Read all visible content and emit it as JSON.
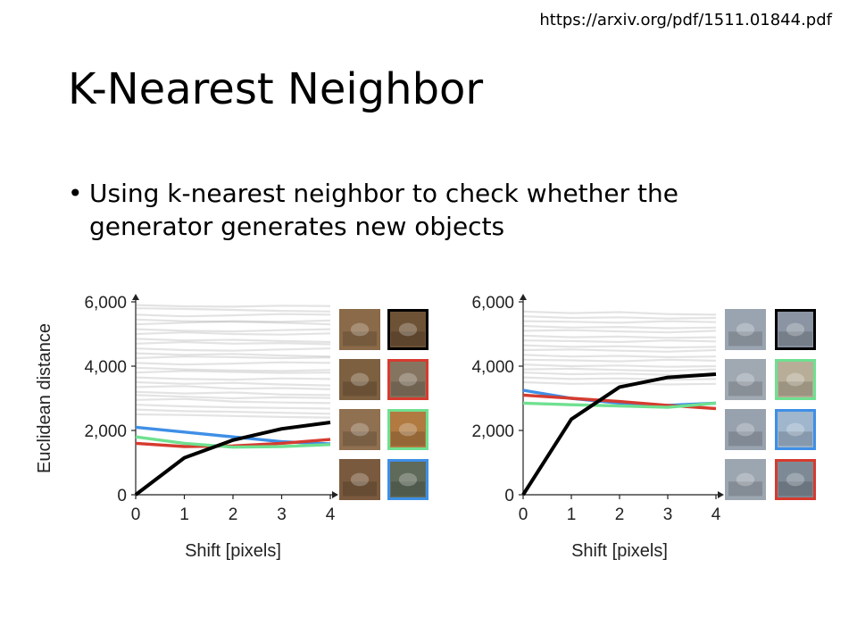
{
  "source_url": "https://arxiv.org/pdf/1511.01844.pdf",
  "title": "K-Nearest Neighbor",
  "bullet": "Using k-nearest neighbor to check whether the generator generates new objects",
  "bullet_symbol": "•",
  "colors": {
    "black": "#000000",
    "blue": "#3f8fe6",
    "red": "#d63b2f",
    "green": "#6fe090",
    "gray": "#9a9a9a"
  },
  "chart_data": [
    {
      "type": "line",
      "title": "",
      "xlabel": "Shift [pixels]",
      "ylabel": "Euclidean distance",
      "x": [
        0,
        1,
        2,
        3,
        4
      ],
      "xticks": [
        "0",
        "1",
        "2",
        "3",
        "4"
      ],
      "yticks": [
        {
          "v": 0,
          "label": "0"
        },
        {
          "v": 2000,
          "label": "2,000"
        },
        {
          "v": 4000,
          "label": "4,000"
        },
        {
          "v": 6000,
          "label": "6,000"
        }
      ],
      "xlim": [
        0,
        4
      ],
      "ylim": [
        0,
        6000
      ],
      "grid": false,
      "series": [
        {
          "color": "black",
          "values": [
            0,
            1150,
            1700,
            2050,
            2250
          ]
        },
        {
          "color": "blue",
          "values": [
            2100,
            1950,
            1800,
            1650,
            1580
          ]
        },
        {
          "color": "red",
          "values": [
            1600,
            1500,
            1520,
            1600,
            1720
          ]
        },
        {
          "color": "green",
          "values": [
            1800,
            1600,
            1480,
            1500,
            1560
          ]
        }
      ],
      "background_lines": [
        [
          5900,
          5860,
          5850,
          5880,
          5870
        ],
        [
          5800,
          5780,
          5750,
          5720,
          5700
        ],
        [
          5600,
          5550,
          5580,
          5620,
          5600
        ],
        [
          5450,
          5400,
          5380,
          5350,
          5300
        ],
        [
          5300,
          5350,
          5400,
          5380,
          5420
        ],
        [
          5150,
          5100,
          5080,
          5120,
          5150
        ],
        [
          5000,
          5050,
          5000,
          4980,
          5020
        ],
        [
          4850,
          4800,
          4820,
          4780,
          4750
        ],
        [
          4700,
          4750,
          4700,
          4720,
          4680
        ],
        [
          4550,
          4500,
          4480,
          4520,
          4550
        ],
        [
          4400,
          4350,
          4380,
          4330,
          4300
        ],
        [
          4250,
          4300,
          4280,
          4250,
          4270
        ],
        [
          4100,
          4050,
          4080,
          4120,
          4100
        ],
        [
          3950,
          3900,
          3870,
          3850,
          3880
        ],
        [
          3800,
          3850,
          3820,
          3790,
          3800
        ],
        [
          3650,
          3600,
          3580,
          3620,
          3600
        ],
        [
          3500,
          3450,
          3480,
          3430,
          3400
        ],
        [
          3350,
          3380,
          3300,
          3320,
          3280
        ],
        [
          3200,
          3150,
          3180,
          3120,
          3100
        ],
        [
          3100,
          3050,
          3000,
          3030,
          3010
        ],
        [
          2950,
          2980,
          2900,
          2870,
          2850
        ],
        [
          2800,
          2750,
          2720,
          2700,
          2680
        ],
        [
          2650,
          2600,
          2580,
          2550,
          2520
        ],
        [
          2500,
          2480,
          2450,
          2420,
          2400
        ]
      ],
      "thumbnails": {
        "query": [
          {
            "icon": "deer-thumbnail-icon",
            "fill": "#8a6a48"
          },
          {
            "icon": "deer-thumbnail-icon",
            "fill": "#7d6040"
          },
          {
            "icon": "deer-thumbnail-icon",
            "fill": "#8f7050"
          },
          {
            "icon": "deer-thumbnail-icon",
            "fill": "#7a5a3e"
          }
        ],
        "neighbors": [
          {
            "icon": "deer-thumbnail-icon",
            "fill": "#6e5236",
            "border": "black"
          },
          {
            "icon": "toad-thumbnail-icon",
            "fill": "#857560",
            "border": "red"
          },
          {
            "icon": "fox-thumbnail-icon",
            "fill": "#b07a40",
            "border": "green"
          },
          {
            "icon": "bird-thumbnail-icon",
            "fill": "#5f6a5a",
            "border": "blue"
          }
        ]
      }
    },
    {
      "type": "line",
      "title": "",
      "xlabel": "Shift [pixels]",
      "ylabel": "",
      "x": [
        0,
        1,
        2,
        3,
        4
      ],
      "xticks": [
        "0",
        "1",
        "2",
        "3",
        "4"
      ],
      "yticks": [
        {
          "v": 0,
          "label": "0"
        },
        {
          "v": 2000,
          "label": "2,000"
        },
        {
          "v": 4000,
          "label": "4,000"
        },
        {
          "v": 6000,
          "label": "6,000"
        }
      ],
      "xlim": [
        0,
        4
      ],
      "ylim": [
        0,
        6000
      ],
      "grid": false,
      "series": [
        {
          "color": "black",
          "values": [
            0,
            2350,
            3350,
            3650,
            3750
          ]
        },
        {
          "color": "blue",
          "values": [
            3250,
            3000,
            2850,
            2780,
            2850
          ]
        },
        {
          "color": "red",
          "values": [
            3100,
            3000,
            2900,
            2780,
            2680
          ]
        },
        {
          "color": "green",
          "values": [
            2850,
            2800,
            2760,
            2720,
            2850
          ]
        }
      ],
      "background_lines": [
        [
          5700,
          5650,
          5680,
          5620,
          5600
        ],
        [
          5550,
          5500,
          5520,
          5480,
          5500
        ],
        [
          5400,
          5380,
          5350,
          5400,
          5370
        ],
        [
          5250,
          5200,
          5220,
          5180,
          5200
        ],
        [
          5100,
          5120,
          5080,
          5050,
          5100
        ],
        [
          4950,
          4900,
          4920,
          4880,
          4900
        ],
        [
          4800,
          4780,
          4750,
          4800,
          4770
        ],
        [
          4650,
          4600,
          4620,
          4580,
          4600
        ],
        [
          4500,
          4520,
          4480,
          4450,
          4500
        ],
        [
          4350,
          4300,
          4320,
          4280,
          4300
        ],
        [
          4200,
          4180,
          4150,
          4200,
          4170
        ],
        [
          4050,
          4000,
          4020,
          3980,
          4000
        ],
        [
          3900,
          3920,
          3880,
          3850,
          3900
        ],
        [
          3800,
          3750,
          3770,
          3730,
          3750
        ],
        [
          3650,
          3600,
          3620,
          3580,
          3600
        ],
        [
          3500,
          3450,
          3470,
          3430,
          3450
        ]
      ],
      "thumbnails": {
        "query": [
          {
            "icon": "truck-thumbnail-icon",
            "fill": "#9aa4b0"
          },
          {
            "icon": "truck-thumbnail-icon",
            "fill": "#a0a8b2"
          },
          {
            "icon": "truck-thumbnail-icon",
            "fill": "#98a2ae"
          },
          {
            "icon": "truck-thumbnail-icon",
            "fill": "#9ca6b0"
          }
        ],
        "neighbors": [
          {
            "icon": "truck-thumbnail-icon",
            "fill": "#8a94a2",
            "border": "black"
          },
          {
            "icon": "ship-thumbnail-icon",
            "fill": "#b8ae98",
            "border": "green"
          },
          {
            "icon": "airplane-thumbnail-icon",
            "fill": "#9fb6cc",
            "border": "blue"
          },
          {
            "icon": "ship-thumbnail-icon",
            "fill": "#7d8a96",
            "border": "red"
          }
        ]
      }
    }
  ]
}
